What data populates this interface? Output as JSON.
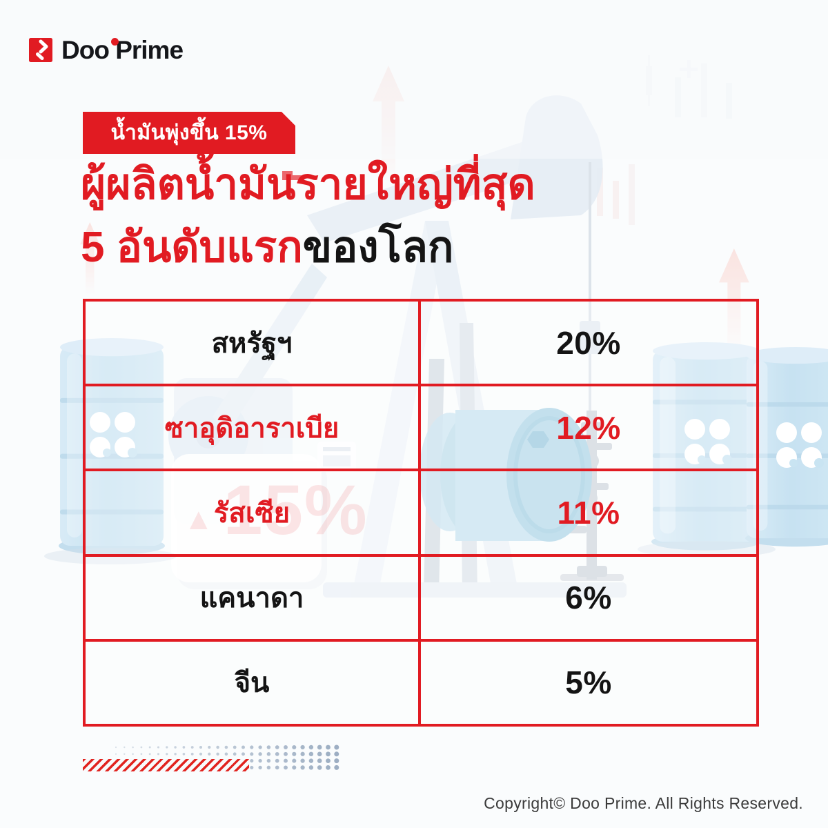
{
  "brand": {
    "name": "Doo Prime",
    "accent_red": "#e11b22"
  },
  "badge": {
    "text": "น้ำมันพุ่งขึ้น 15%"
  },
  "title": {
    "line1": "ผู้ผลิตน้ำมันรายใหญ่ที่สุด",
    "line2_highlight": "5 อันดับแรก",
    "line2_rest": "ของโลก"
  },
  "watermark": {
    "arrow": "▲",
    "text": "15%"
  },
  "chart_data": {
    "type": "table",
    "title": "ผู้ผลิตน้ำมันรายใหญ่ที่สุด 5 อันดับแรกของโลก",
    "badge": "น้ำมันพุ่งขึ้น 15%",
    "categories": [
      "สหรัฐฯ",
      "ซาอุดิอาราเบีย",
      "รัสเซีย",
      "แคนาดา",
      "จีน"
    ],
    "values": [
      20,
      12,
      11,
      6,
      5
    ],
    "unit": "%",
    "row_text_colors": [
      "#141414",
      "#e11b22",
      "#e11b22",
      "#141414",
      "#141414"
    ],
    "border_color": "#e11b22",
    "legend_position": "none",
    "grid": true
  },
  "footer": {
    "copyright": "Copyright© Doo Prime. All Rights Reserved."
  },
  "decor": {
    "dot_color": "#8ca0b8",
    "dot_cols": 27,
    "dot_rows": 4
  }
}
